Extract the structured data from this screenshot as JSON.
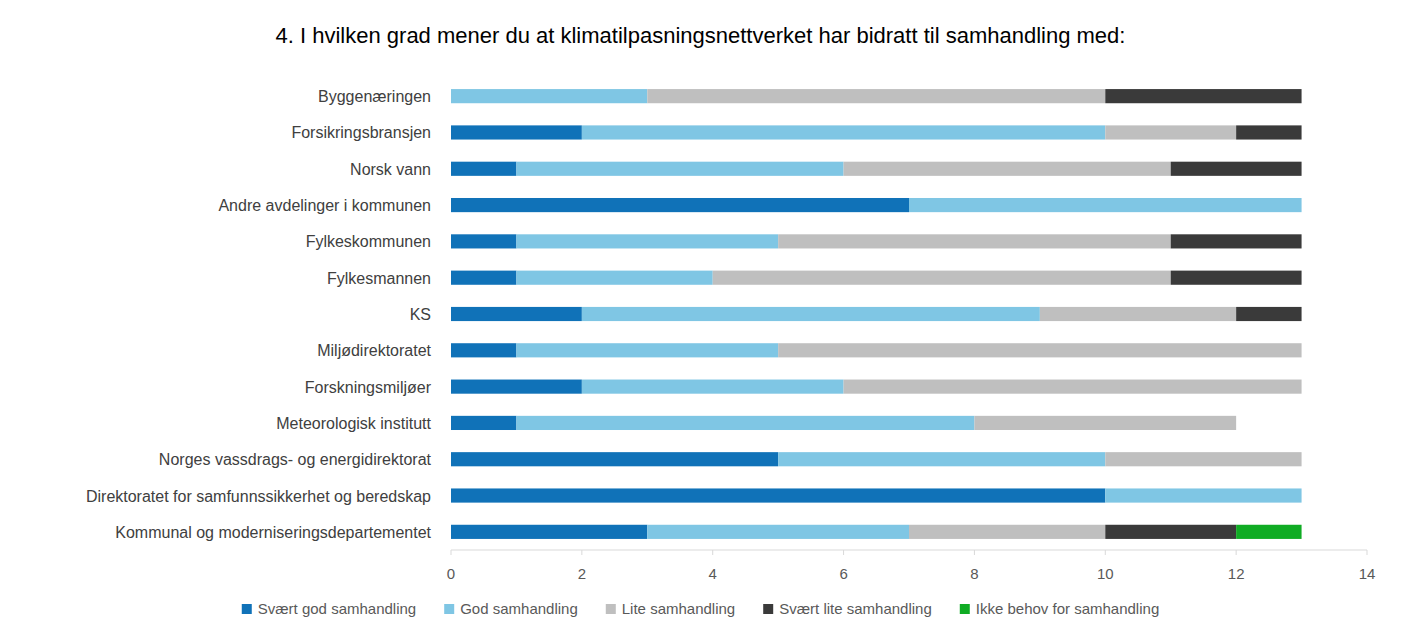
{
  "chart_data": {
    "type": "bar",
    "orientation": "horizontal",
    "stacked": true,
    "grid": false,
    "legend": "bottom",
    "title": "4. I hvilken grad mener du at klimatilpasningsnettverket har bidratt til samhandling med:",
    "categories": [
      "Byggenæringen",
      "Forsikringsbransjen",
      "Norsk vann",
      "Andre avdelinger i kommunen",
      "Fylkeskommunen",
      "Fylkesmannen",
      "KS",
      "Miljødirektoratet",
      "Forskningsmiljøer",
      "Meteorologisk institutt",
      "Norges vassdrags- og energidirektorat",
      "Direktoratet for samfunnssikkerhet og beredskap",
      "Kommunal og moderniseringsdepartementet"
    ],
    "series": [
      {
        "name": "Svært god samhandling",
        "color": "#1072b8",
        "values": [
          0,
          2,
          1,
          7,
          1,
          1,
          2,
          1,
          2,
          1,
          5,
          10,
          3
        ]
      },
      {
        "name": "God samhandling",
        "color": "#7fc6e4",
        "values": [
          3,
          8,
          5,
          6,
          4,
          3,
          7,
          4,
          4,
          7,
          5,
          3,
          4
        ]
      },
      {
        "name": "Lite samhandling",
        "color": "#bfbfbf",
        "values": [
          7,
          2,
          5,
          0,
          6,
          7,
          3,
          8,
          7,
          4,
          3,
          0,
          3
        ]
      },
      {
        "name": "Svært lite samhandling",
        "color": "#3a3a3a",
        "values": [
          3,
          1,
          2,
          0,
          2,
          2,
          1,
          0,
          0,
          0,
          0,
          0,
          2
        ]
      },
      {
        "name": "Ikke behov for samhandling",
        "color": "#10ac24",
        "values": [
          0,
          0,
          0,
          0,
          0,
          0,
          0,
          0,
          0,
          0,
          0,
          0,
          1
        ]
      }
    ],
    "xlim": [
      0,
      14
    ],
    "xticks": [
      0,
      2,
      4,
      6,
      8,
      10,
      12,
      14
    ]
  }
}
